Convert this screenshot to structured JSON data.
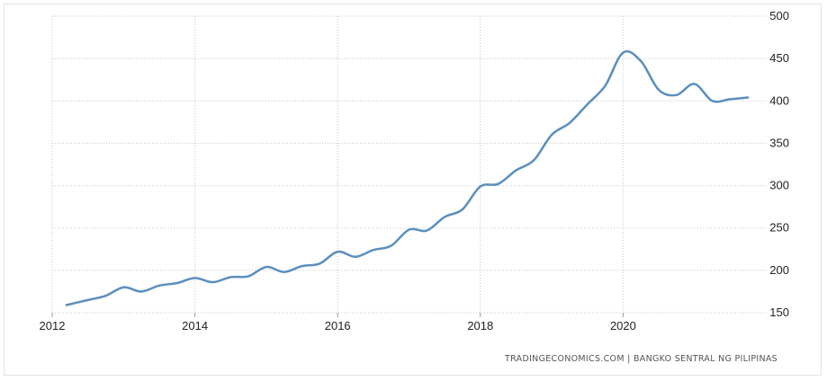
{
  "chart_data": {
    "type": "line",
    "title": "",
    "xlabel": "",
    "ylabel": "",
    "x_ticks": [
      "2012",
      "2014",
      "2016",
      "2018",
      "2020"
    ],
    "y_ticks": [
      "150",
      "200",
      "250",
      "300",
      "350",
      "400",
      "450",
      "500"
    ],
    "xlim": [
      2012.0,
      2022.0
    ],
    "ylim": [
      150,
      500
    ],
    "grid": true,
    "line_color": "#5b8fbd",
    "x": [
      2012.2,
      2012.5,
      2012.75,
      2013.0,
      2013.25,
      2013.5,
      2013.75,
      2014.0,
      2014.25,
      2014.5,
      2014.75,
      2015.0,
      2015.25,
      2015.5,
      2015.75,
      2016.0,
      2016.25,
      2016.5,
      2016.75,
      2017.0,
      2017.25,
      2017.5,
      2017.75,
      2018.0,
      2018.25,
      2018.5,
      2018.75,
      2019.0,
      2019.25,
      2019.5,
      2019.75,
      2020.0,
      2020.25,
      2020.5,
      2020.75,
      2021.0,
      2021.25,
      2021.5,
      2021.75
    ],
    "y": [
      159,
      165,
      170,
      180,
      175,
      182,
      185,
      191,
      186,
      192,
      193,
      204,
      198,
      205,
      208,
      222,
      216,
      224,
      229,
      248,
      247,
      263,
      272,
      299,
      302,
      318,
      330,
      360,
      374,
      396,
      418,
      457,
      447,
      413,
      407,
      420,
      400,
      402,
      404
    ]
  },
  "source": "TRADINGECONOMICS.COM  |  BANGKO SENTRAL NG PILIPINAS"
}
